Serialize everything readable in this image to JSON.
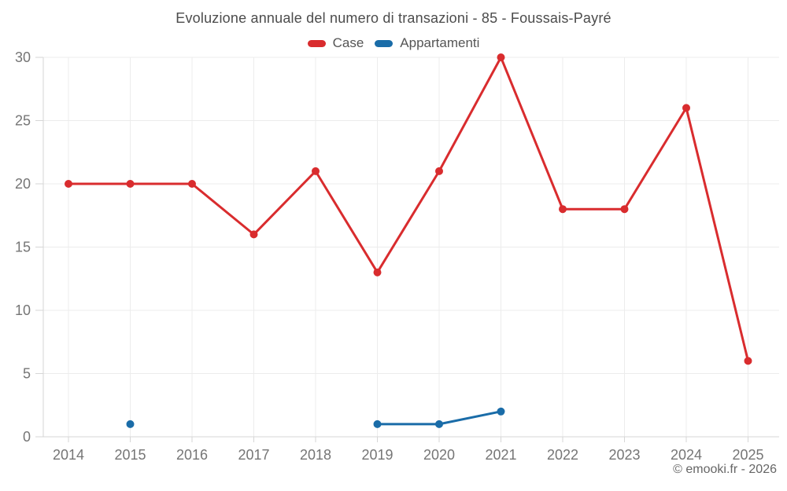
{
  "footer": {
    "credit": "© emooki.fr - 2026"
  },
  "colors": {
    "grid": "#ececec",
    "axis_line": "#d6d6d6",
    "tick_text": "#757575",
    "title_text": "#4c4c4c",
    "case_red": "#d92c2e",
    "appartamenti_blue": "#1a6ca8"
  },
  "chart_data": {
    "type": "line",
    "title": "Evoluzione annuale del numero di transazioni - 85 - Foussais-Payré",
    "categories": [
      "2014",
      "2015",
      "2016",
      "2017",
      "2018",
      "2019",
      "2020",
      "2021",
      "2022",
      "2023",
      "2024",
      "2025"
    ],
    "series": [
      {
        "name": "Case",
        "color": "#d92c2e",
        "values": [
          20,
          20,
          20,
          16,
          21,
          13,
          21,
          30,
          18,
          18,
          26,
          6
        ]
      },
      {
        "name": "Appartamenti",
        "color": "#1a6ca8",
        "values": [
          null,
          1,
          null,
          null,
          null,
          1,
          1,
          2,
          null,
          null,
          null,
          null
        ]
      }
    ],
    "xlabel": "",
    "ylabel": "",
    "ylim": [
      0,
      30
    ],
    "yticks": [
      0,
      5,
      10,
      15,
      20,
      25,
      30
    ],
    "grid": true,
    "legend_position": "top",
    "marker_radius": 5,
    "line_width": 3
  }
}
